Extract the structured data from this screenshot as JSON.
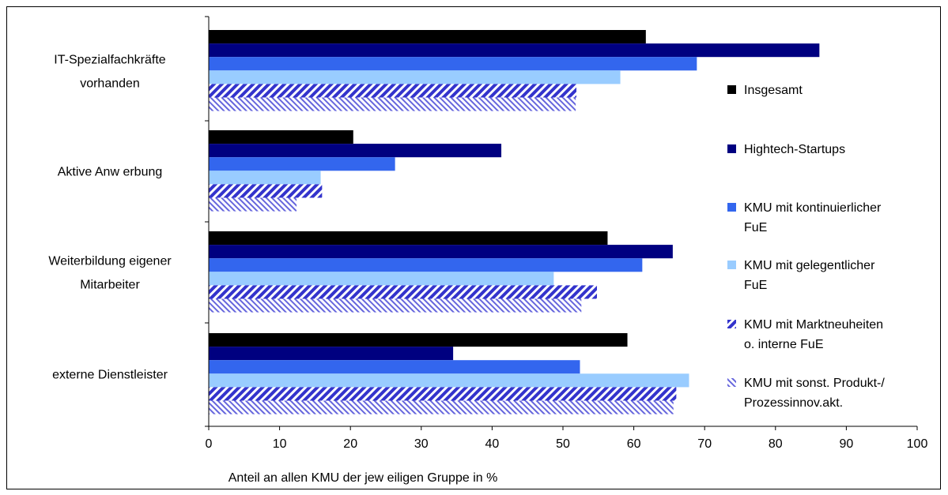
{
  "chart_data": {
    "type": "bar",
    "orientation": "horizontal",
    "title": "",
    "xlabel": "Anteil an allen KMU der jew eiligen Gruppe in %",
    "ylabel": "",
    "xlim": [
      0,
      100
    ],
    "xticks": [
      "0",
      "10",
      "20",
      "30",
      "40",
      "50",
      "60",
      "70",
      "80",
      "90",
      "100"
    ],
    "grid": false,
    "legend_position": "right",
    "categories": [
      [
        "IT-Spezialfachkräfte",
        "vorhanden"
      ],
      [
        "Aktive Anw erbung"
      ],
      [
        "Weiterbildung eigener",
        "Mitarbeiter"
      ],
      [
        "externe Dienstleister"
      ]
    ],
    "series": [
      {
        "name": [
          "Insgesamt"
        ],
        "color": "#000000",
        "pattern": "solid",
        "values": [
          61.7,
          20.4,
          56.3,
          59.1
        ]
      },
      {
        "name": [
          "Hightech-Startups"
        ],
        "color": "#000080",
        "pattern": "solid",
        "values": [
          86.2,
          41.3,
          65.5,
          34.5
        ]
      },
      {
        "name": [
          "KMU mit kontinuierlicher",
          "FuE"
        ],
        "color": "#3366ee",
        "pattern": "solid",
        "values": [
          68.9,
          26.3,
          61.2,
          52.4
        ]
      },
      {
        "name": [
          "KMU mit gelegentlicher",
          "FuE"
        ],
        "color": "#99ccff",
        "pattern": "solid",
        "values": [
          58.1,
          15.8,
          48.7,
          67.8
        ]
      },
      {
        "name": [
          "KMU mit Marktneuheiten",
          "o. interne FuE"
        ],
        "color": "#3333cc",
        "pattern": "diag-up",
        "values": [
          51.9,
          16.0,
          54.8,
          66.0
        ]
      },
      {
        "name": [
          "KMU mit sonst. Produkt-/",
          "Prozessinnov.akt."
        ],
        "color": "#6666dd",
        "pattern": "diag-down",
        "values": [
          51.8,
          12.4,
          52.6,
          65.6
        ]
      }
    ]
  }
}
